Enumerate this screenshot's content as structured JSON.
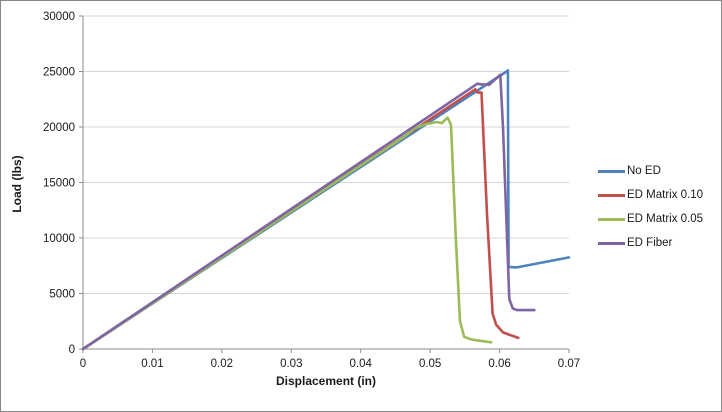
{
  "chart_data": {
    "type": "line",
    "title": "",
    "xlabel": "Displacement (in)",
    "ylabel": "Load (lbs)",
    "xlim": [
      0,
      0.07
    ],
    "ylim": [
      0,
      30000
    ],
    "xticks": [
      0,
      0.01,
      0.02,
      0.03,
      0.04,
      0.05,
      0.06,
      0.07
    ],
    "xtick_labels": [
      "0",
      "0.01",
      "0.02",
      "0.03",
      "0.04",
      "0.05",
      "0.06",
      "0.07"
    ],
    "yticks": [
      0,
      5000,
      10000,
      15000,
      20000,
      25000,
      30000
    ],
    "ytick_labels": [
      "0",
      "5000",
      "10000",
      "15000",
      "20000",
      "25000",
      "30000"
    ],
    "grid": "horizontal",
    "legend_position": "right",
    "colors": {
      "gridline": "#D5D5D5",
      "axis_line": "#8E8E8E",
      "tick_text": "#1a1a1a"
    },
    "series": [
      {
        "name": "No ED",
        "color": "#4F81BD",
        "points": [
          [
            0,
            0
          ],
          [
            0.061,
            25000
          ],
          [
            0.0612,
            25100
          ],
          [
            0.0613,
            7400
          ],
          [
            0.0625,
            7350
          ],
          [
            0.07,
            8250
          ]
        ]
      },
      {
        "name": "ED Matrix 0.10",
        "color": "#C0504D",
        "points": [
          [
            0,
            0
          ],
          [
            0.0565,
            23400
          ],
          [
            0.0568,
            23100
          ],
          [
            0.0574,
            23100
          ],
          [
            0.0582,
            12000
          ],
          [
            0.059,
            3200
          ],
          [
            0.0595,
            2200
          ],
          [
            0.0605,
            1500
          ],
          [
            0.0627,
            1000
          ]
        ]
      },
      {
        "name": "ED Matrix 0.05",
        "color": "#9BBB59",
        "points": [
          [
            0,
            0
          ],
          [
            0.0462,
            19100
          ],
          [
            0.0478,
            19900
          ],
          [
            0.0493,
            20250
          ],
          [
            0.051,
            20450
          ],
          [
            0.0517,
            20350
          ],
          [
            0.0525,
            20850
          ],
          [
            0.053,
            20200
          ],
          [
            0.0537,
            10000
          ],
          [
            0.0543,
            2500
          ],
          [
            0.0549,
            1100
          ],
          [
            0.056,
            850
          ],
          [
            0.0588,
            600
          ]
        ]
      },
      {
        "name": "ED Fiber",
        "color": "#8064A2",
        "points": [
          [
            0,
            0
          ],
          [
            0.0568,
            23900
          ],
          [
            0.0573,
            23850
          ],
          [
            0.0585,
            23800
          ],
          [
            0.0601,
            24700
          ],
          [
            0.0605,
            20000
          ],
          [
            0.0614,
            4500
          ],
          [
            0.0619,
            3650
          ],
          [
            0.0625,
            3500
          ],
          [
            0.065,
            3500
          ]
        ]
      }
    ]
  }
}
